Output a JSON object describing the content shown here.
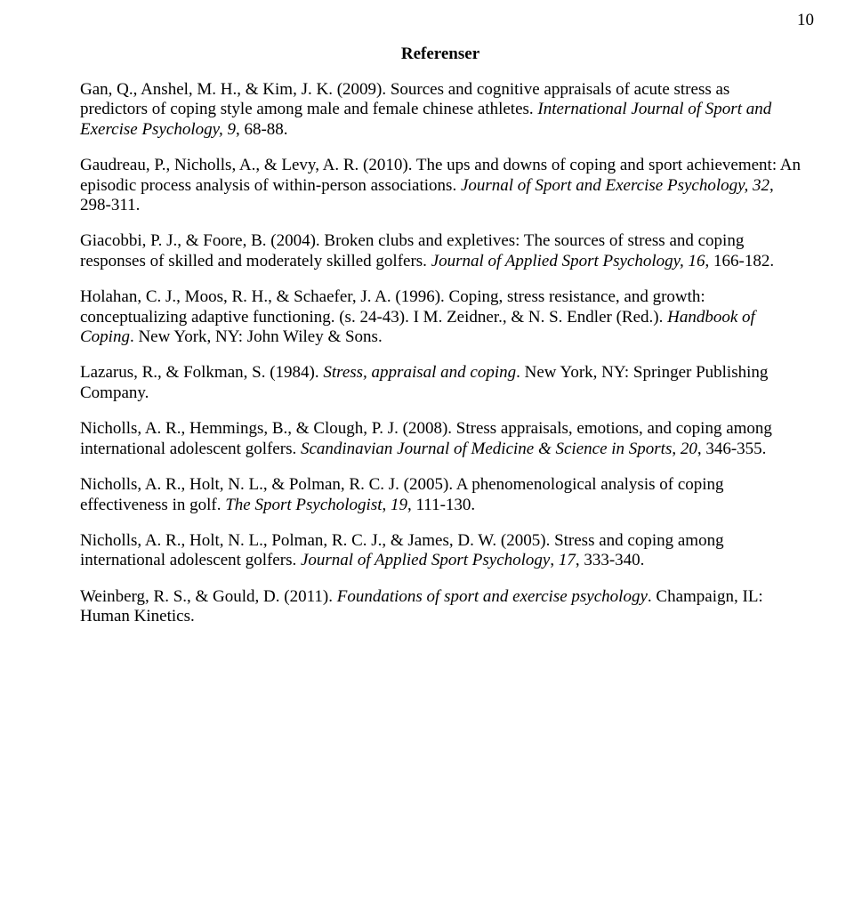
{
  "page_number": "10",
  "title": "Referenser",
  "refs": [
    {
      "a1": "Gan, Q., Anshel, M. H., & Kim, J. K. (2009). Sources and cognitive appraisals of acute stress as predictors of coping style among male and female chinese athletes. ",
      "i1": "International Journal of Sport and Exercise Psychology, 9",
      "a2": ", 68-88."
    },
    {
      "a1": "Gaudreau, P., Nicholls, A., & Levy, A. R. (2010). The ups and downs of coping and sport achievement: An episodic process analysis of within-person associations. ",
      "i1": "Journal of Sport and Exercise Psychology, 32",
      "a2": ", 298-311."
    },
    {
      "a1": "Giacobbi, P. J., & Foore, B. (2004). Broken clubs and expletives: The sources of stress and coping responses of skilled and moderately skilled golfers. ",
      "i1": "Journal of Applied Sport Psychology, 16",
      "a2": ", 166-182."
    },
    {
      "a1": "Holahan, C. J., Moos, R. H., & Schaefer, J. A. (1996). Coping, stress resistance, and growth: conceptualizing adaptive functioning. (s. 24-43). I M. Zeidner., & N. S. Endler (Red.). ",
      "i1": "Handbook of Coping",
      "a2": ". New York, NY: John Wiley & Sons."
    },
    {
      "a1": "Lazarus, R., & Folkman, S. (1984). ",
      "i1": "Stress, appraisal and coping",
      "a2": ". New York, NY: Springer Publishing Company."
    },
    {
      "a1": "Nicholls, A. R., Hemmings, B., & Clough, P. J. (2008). Stress appraisals, emotions, and coping among international adolescent golfers. ",
      "i1": "Scandinavian Journal of Medicine & Science in Sports",
      "a2": ", ",
      "i2": "20",
      "a3": ", 346-355."
    },
    {
      "a1": "Nicholls, A. R., Holt, N. L., & Polman, R. C. J. (2005). A phenomenological analysis of coping effectiveness in golf. ",
      "i1": "The Sport Psychologist",
      "a2": ", ",
      "i2": "19",
      "a3": ", 111-130."
    },
    {
      "a1": "Nicholls, A. R., Holt, N. L., Polman, R. C. J., & James, D. W. (2005). Stress and coping among international adolescent golfers. ",
      "i1": "Journal of Applied Sport Psychology",
      "a2": ", ",
      "i2": "17",
      "a3": ", 333-340."
    },
    {
      "a1": "Weinberg, R. S., & Gould, D. (2011). ",
      "i1": "Foundations of sport and exercise psychology",
      "a2": ". Champaign, IL: Human Kinetics."
    }
  ]
}
